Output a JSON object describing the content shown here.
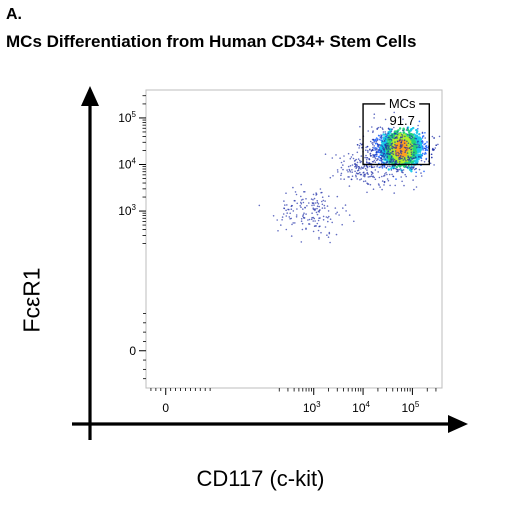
{
  "panel_label": "A.",
  "figure_title": "MCs Differentiation from Human CD34+ Stem Cells",
  "chart_data": {
    "type": "scatter",
    "plot_style": "flow-cytometry-density",
    "xlabel": "CD117 (c-kit)",
    "ylabel": "FcεR1",
    "x_scale": "biexponential",
    "y_scale": "biexponential",
    "x_ticks": [
      {
        "value": 0,
        "label": "0",
        "exp": ""
      },
      {
        "value": 1000,
        "label": "10",
        "exp": "3"
      },
      {
        "value": 10000,
        "label": "10",
        "exp": "4"
      },
      {
        "value": 100000,
        "label": "10",
        "exp": "5"
      }
    ],
    "y_ticks": [
      {
        "value": 0,
        "label": "0",
        "exp": ""
      },
      {
        "value": 1000,
        "label": "10",
        "exp": "3"
      },
      {
        "value": 10000,
        "label": "10",
        "exp": "4"
      },
      {
        "value": 100000,
        "label": "10",
        "exp": "5"
      }
    ],
    "xlim_decades": [
      -0.4,
      5.6
    ],
    "ylim_decades": [
      -0.8,
      5.6
    ],
    "gate": {
      "name": "MCs",
      "value": "91.7",
      "x_range": [
        10000,
        220000
      ],
      "y_range": [
        10000,
        200000
      ]
    },
    "populations": [
      {
        "center": [
          60000,
          22000
        ],
        "spread": [
          0.22,
          0.17
        ],
        "count": 1700
      },
      {
        "center": [
          40000,
          18000
        ],
        "spread": [
          0.33,
          0.3
        ],
        "count": 450
      },
      {
        "center": [
          900,
          1000
        ],
        "spread": [
          0.33,
          0.26
        ],
        "count": 170
      },
      {
        "center": [
          9000,
          8000
        ],
        "spread": [
          0.33,
          0.2
        ],
        "count": 130
      }
    ],
    "grid": false,
    "legend": "none",
    "density_colors": [
      "#1f2fa8",
      "#2f6fff",
      "#18c8e8",
      "#25d27a",
      "#aef02c",
      "#ffa020"
    ]
  }
}
